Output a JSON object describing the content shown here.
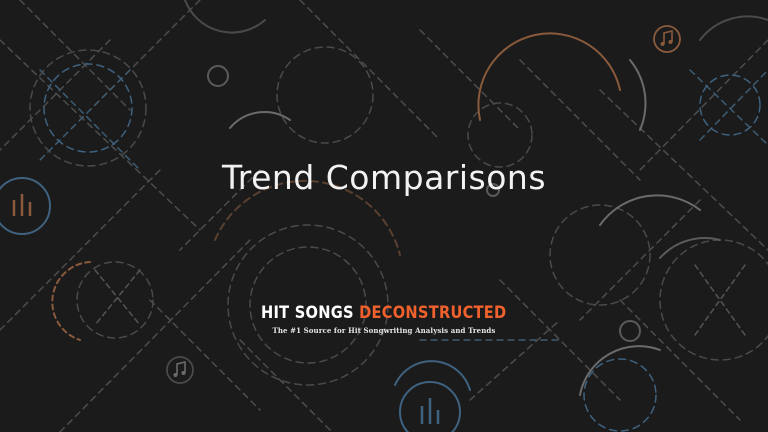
{
  "slide": {
    "title": "Trend Comparisons"
  },
  "logo": {
    "hit_songs": "HIT SONGS",
    "deconstructed": "DECONSTRUCTED",
    "tagline": "The #1 Source for Hit Songwriting Analysis and Trends"
  },
  "icons": {
    "note_icon": "music-note-icon",
    "bars_icon": "audio-bars-icon"
  },
  "colors": {
    "background": "#1b1b1b",
    "accent_orange": "#f0612d",
    "line_blue": "#4a7fa3",
    "line_grey": "#6b6b6b",
    "line_brown": "#8a5a3c"
  }
}
